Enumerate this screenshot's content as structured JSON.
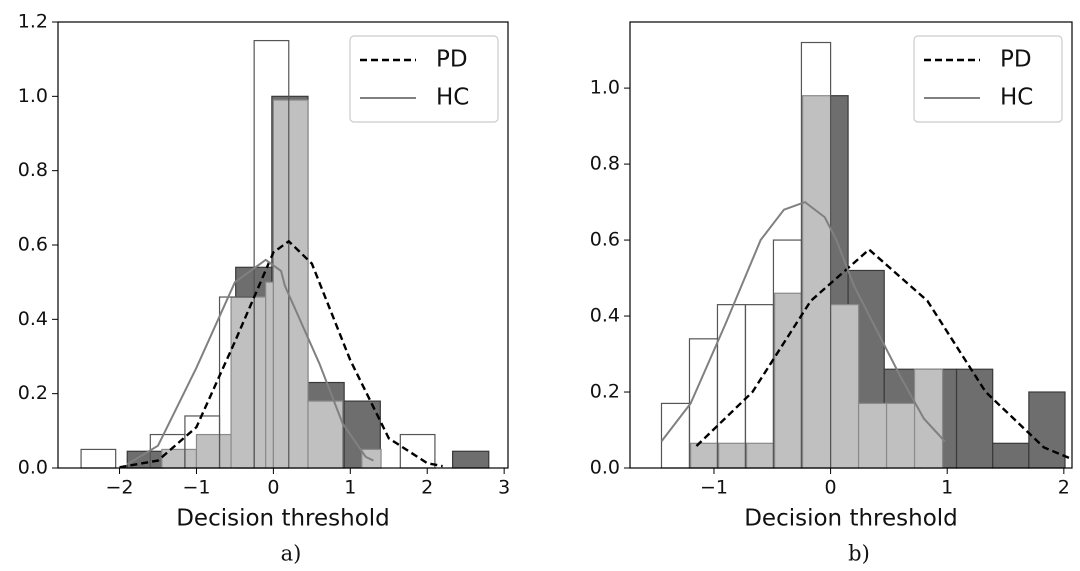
{
  "chart_data": [
    {
      "type": "histogram",
      "xlabel": "Decision threshold",
      "caption": "a)",
      "xlim": [
        -2.8,
        3.05
      ],
      "ylim": [
        0,
        1.2
      ],
      "xticks": [
        {
          "value": -2,
          "label": "−2"
        },
        {
          "value": -1,
          "label": "−1"
        },
        0,
        1,
        2,
        3
      ],
      "yticks": [
        {
          "value": 0,
          "label": "0.0"
        },
        0.2,
        0.4,
        0.6,
        0.8,
        {
          "value": 1,
          "label": "1.0"
        },
        1.2
      ],
      "legend": "upper right",
      "histograms": [
        {
          "fill": "#6e6e6e",
          "edgecolor": "#3a3a3a",
          "bins": [
            -1.9,
            -1.43,
            -0.96,
            -0.49,
            -0.02,
            0.45,
            0.92,
            1.39,
            1.86,
            2.33,
            2.8
          ],
          "counts": [
            0.045,
            0,
            0,
            0.54,
            1.0,
            0.23,
            0.18,
            0,
            0,
            0.045
          ]
        },
        {
          "fill": "#c0c0c0",
          "edgecolor": "#8a8a8a",
          "bins": [
            -1.45,
            -1.0,
            -0.55,
            -0.1,
            0.0,
            0.45,
            0.9,
            1.15,
            1.4
          ],
          "counts": [
            0.05,
            0.09,
            0.46,
            0.5,
            0.99,
            0.18,
            0,
            0.05
          ]
        },
        {
          "fill": "none",
          "edgecolor": "#555555",
          "bins": [
            -2.5,
            -2.05,
            -1.6,
            -1.15,
            -0.7,
            -0.25,
            0.2,
            0.65,
            1.1,
            1.65,
            2.1
          ],
          "counts": [
            0.05,
            0,
            0.09,
            0.14,
            0.46,
            1.15,
            0,
            0,
            0,
            0.09
          ]
        }
      ],
      "series": [
        {
          "name": "PD",
          "color": "#000000",
          "style": "dashed",
          "x": [
            -2.0,
            -1.5,
            -1.0,
            -0.5,
            0.0,
            0.2,
            0.5,
            1.0,
            1.5,
            2.0,
            2.2
          ],
          "values": [
            0.002,
            0.02,
            0.11,
            0.34,
            0.58,
            0.61,
            0.55,
            0.29,
            0.08,
            0.013,
            0.005
          ]
        },
        {
          "name": "HC",
          "color": "#808080",
          "style": "solid",
          "x": [
            -1.9,
            -1.5,
            -1.0,
            -0.5,
            -0.1,
            0.1,
            0.15,
            0.3,
            0.6,
            0.9,
            1.2,
            1.3
          ],
          "values": [
            0.01,
            0.06,
            0.27,
            0.5,
            0.56,
            0.53,
            0.49,
            0.42,
            0.28,
            0.12,
            0.03,
            0.02
          ]
        }
      ]
    },
    {
      "type": "histogram",
      "xlabel": "Decision threshold",
      "caption": "b)",
      "xlim": [
        -1.72,
        2.07
      ],
      "ylim": [
        0,
        1.174
      ],
      "xticks": [
        {
          "value": -1,
          "label": "−1"
        },
        0,
        1,
        2
      ],
      "yticks": [
        {
          "value": 0,
          "label": "0.0"
        },
        0.2,
        0.4,
        0.6,
        0.8,
        {
          "value": 1,
          "label": "1.0"
        }
      ],
      "legend": "upper right",
      "histograms": [
        {
          "fill": "#6e6e6e",
          "edgecolor": "#3a3a3a",
          "bins": [
            0.0,
            0.15,
            0.46,
            0.77,
            1.08,
            1.39,
            1.7,
            2.01
          ],
          "counts": [
            0.98,
            0.52,
            0.26,
            0.26,
            0.26,
            0.065,
            0.2
          ]
        },
        {
          "fill": "#c0c0c0",
          "edgecolor": "#8a8a8a",
          "bins": [
            -1.2,
            -0.96,
            -0.72,
            -0.48,
            -0.24,
            0,
            0.24,
            0.48,
            0.72,
            0.96
          ],
          "counts": [
            0.065,
            0.065,
            0.065,
            0.46,
            0.98,
            0.43,
            0.17,
            0.17,
            0.26
          ]
        },
        {
          "fill": "none",
          "edgecolor": "#555555",
          "bins": [
            -1.45,
            -1.21,
            -0.97,
            -0.73,
            -0.49,
            -0.25,
            0.0
          ],
          "counts": [
            0.17,
            0.34,
            0.43,
            0.43,
            0.6,
            1.12
          ]
        }
      ],
      "series": [
        {
          "name": "PD",
          "color": "#000000",
          "style": "dashed",
          "x": [
            -1.15,
            -0.67,
            -0.17,
            0.33,
            0.83,
            1.33,
            1.83,
            2.05
          ],
          "values": [
            0.058,
            0.2,
            0.44,
            0.575,
            0.44,
            0.2,
            0.054,
            0.026
          ]
        },
        {
          "name": "HC",
          "color": "#808080",
          "style": "solid",
          "x": [
            -1.45,
            -1.2,
            -0.9,
            -0.6,
            -0.4,
            -0.22,
            -0.05,
            0.05,
            0.2,
            0.4,
            0.6,
            0.8,
            0.98
          ],
          "values": [
            0.07,
            0.17,
            0.38,
            0.6,
            0.68,
            0.7,
            0.66,
            0.6,
            0.48,
            0.36,
            0.24,
            0.13,
            0.07
          ]
        }
      ]
    }
  ]
}
